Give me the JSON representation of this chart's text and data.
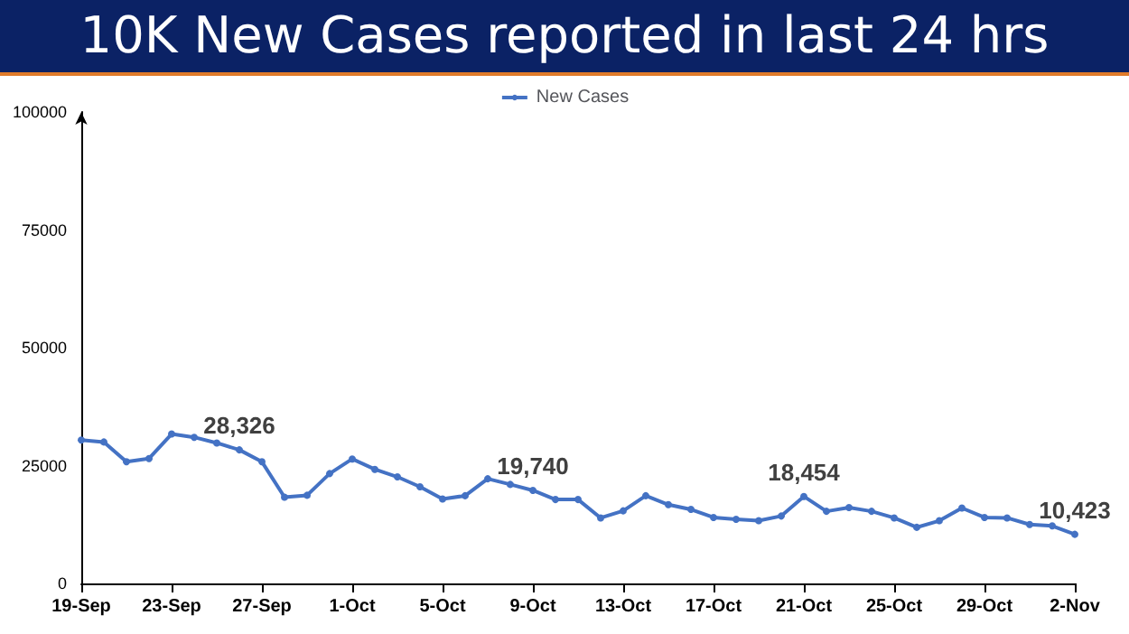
{
  "chart_data": {
    "type": "line",
    "title": "10K New Cases reported in last 24 hrs",
    "categories": [
      "19-Sep",
      null,
      null,
      null,
      "23-Sep",
      null,
      null,
      null,
      "27-Sep",
      null,
      null,
      null,
      "1-Oct",
      null,
      null,
      null,
      "5-Oct",
      null,
      null,
      null,
      "9-Oct",
      null,
      null,
      null,
      "13-Oct",
      null,
      null,
      null,
      "17-Oct",
      null,
      null,
      null,
      "21-Oct",
      null,
      null,
      null,
      "25-Oct",
      null,
      null,
      null,
      "29-Oct",
      null,
      null,
      null,
      "2-Nov"
    ],
    "series": [
      {
        "name": "New Cases",
        "color": "#4472c4",
        "values": [
          30400,
          30000,
          25800,
          26500,
          31700,
          31000,
          29800,
          28326,
          25800,
          18300,
          18700,
          23300,
          26400,
          24200,
          22600,
          20500,
          17900,
          18600,
          22200,
          21000,
          19740,
          17800,
          17800,
          13900,
          15400,
          18600,
          16700,
          15700,
          14000,
          13600,
          13300,
          14300,
          18454,
          15300,
          16100,
          15300,
          13900,
          11900,
          13300,
          16000,
          14000,
          13900,
          12500,
          12200,
          10423
        ],
        "value_labels": [
          null,
          null,
          null,
          null,
          null,
          null,
          null,
          "28,326",
          null,
          null,
          null,
          null,
          null,
          null,
          null,
          null,
          null,
          null,
          null,
          null,
          "19,740",
          null,
          null,
          null,
          null,
          null,
          null,
          null,
          null,
          null,
          null,
          null,
          "18,454",
          null,
          null,
          null,
          null,
          null,
          null,
          null,
          null,
          null,
          null,
          null,
          "10,423"
        ]
      }
    ],
    "ylim": [
      0,
      100000
    ],
    "yticks": [
      0,
      25000,
      50000,
      75000,
      100000
    ],
    "grid": false,
    "legend": "top",
    "marker": "circle",
    "line_style": "solid"
  }
}
